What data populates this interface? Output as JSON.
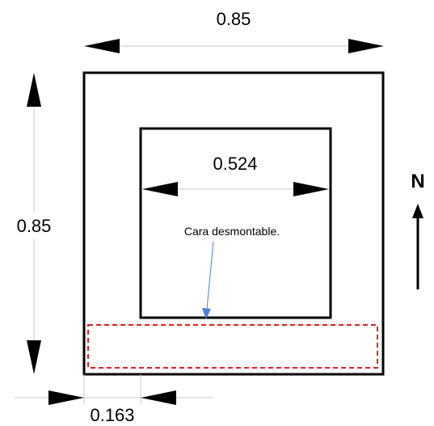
{
  "dimensions": {
    "outer_width": "0.85",
    "outer_height": "0.85",
    "inner_width": "0.524",
    "bottom_offset": "0.163"
  },
  "north_label": "N",
  "removable_face_note": "Cara desmontable.",
  "colors": {
    "line": "#000000",
    "dimension_line": "#c8c8c8",
    "removable_face": "#e02020",
    "leader": "#4a7fd4"
  }
}
